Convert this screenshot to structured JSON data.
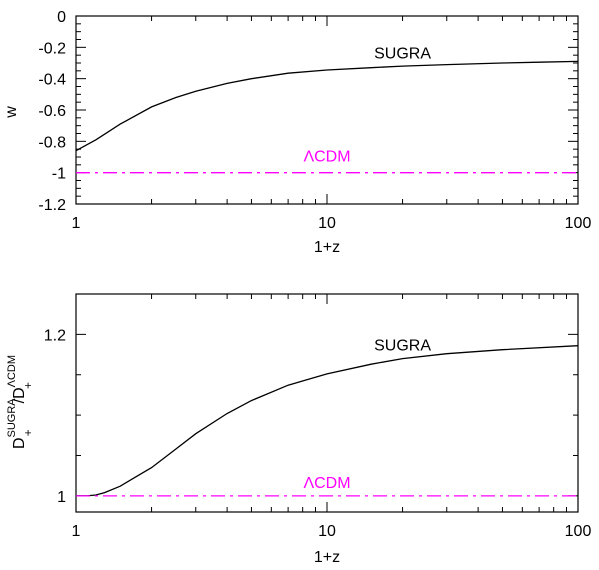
{
  "chart_data": [
    {
      "type": "line",
      "xlabel": "1+z",
      "ylabel": "w",
      "xscale": "log",
      "xlim": [
        1,
        100
      ],
      "ylim": [
        -1.2,
        0
      ],
      "xticks": [
        1,
        10,
        100
      ],
      "xtick_labels": [
        "1",
        "10",
        "100"
      ],
      "yticks": [
        0,
        -0.2,
        -0.4,
        -0.6,
        -0.8,
        -1,
        -1.2
      ],
      "ytick_labels": [
        "0",
        "-0.2",
        "-0.4",
        "-0.6",
        "-0.8",
        "-1",
        "-1.2"
      ],
      "grid": false,
      "series": [
        {
          "name": "SUGRA",
          "color": "#000000",
          "style": "solid",
          "x": [
            1,
            1.2,
            1.5,
            2,
            2.5,
            3,
            4,
            5,
            7,
            10,
            15,
            20,
            30,
            50,
            70,
            100
          ],
          "y": [
            -0.86,
            -0.79,
            -0.69,
            -0.58,
            -0.52,
            -0.48,
            -0.43,
            -0.4,
            -0.365,
            -0.345,
            -0.33,
            -0.32,
            -0.31,
            -0.3,
            -0.295,
            -0.29
          ]
        },
        {
          "name": "ΛCDM",
          "color": "#ff00ff",
          "style": "dash-dot",
          "x": [
            1,
            100
          ],
          "y": [
            -1,
            -1
          ]
        }
      ],
      "annotations": [
        {
          "text": "SUGRA",
          "x": 20,
          "y": -0.27,
          "color": "#000000"
        },
        {
          "text": "ΛCDM",
          "x": 10,
          "y": -0.93,
          "color": "#ff00ff"
        }
      ]
    },
    {
      "type": "line",
      "xlabel": "1+z",
      "ylabel": "D+SUGRA/D+ΛCDM",
      "ylabel_parts": [
        "D",
        "+",
        "SUGRA",
        "/D",
        "+",
        "ΛCDM"
      ],
      "xscale": "log",
      "xlim": [
        1,
        100
      ],
      "ylim": [
        0.98,
        1.25
      ],
      "xticks": [
        1,
        10,
        100
      ],
      "xtick_labels": [
        "1",
        "10",
        "100"
      ],
      "yticks": [
        1,
        1.2
      ],
      "ytick_labels": [
        "1",
        "1.2"
      ],
      "grid": false,
      "series": [
        {
          "name": "SUGRA",
          "color": "#000000",
          "style": "solid",
          "x": [
            1,
            1.1,
            1.2,
            1.3,
            1.5,
            1.7,
            2,
            2.5,
            3,
            4,
            5,
            7,
            10,
            15,
            20,
            30,
            50,
            100
          ],
          "y": [
            1.0,
            1.0,
            1.001,
            1.004,
            1.012,
            1.022,
            1.035,
            1.058,
            1.077,
            1.102,
            1.118,
            1.137,
            1.151,
            1.163,
            1.17,
            1.176,
            1.181,
            1.186
          ]
        },
        {
          "name": "ΛCDM",
          "color": "#ff00ff",
          "style": "dash-dot",
          "x": [
            1,
            100
          ],
          "y": [
            1,
            1
          ]
        }
      ],
      "annotations": [
        {
          "text": "SUGRA",
          "x": 20,
          "y": 1.18,
          "color": "#000000"
        },
        {
          "text": "ΛCDM",
          "x": 10,
          "y": 1.01,
          "color": "#ff00ff"
        }
      ]
    }
  ]
}
